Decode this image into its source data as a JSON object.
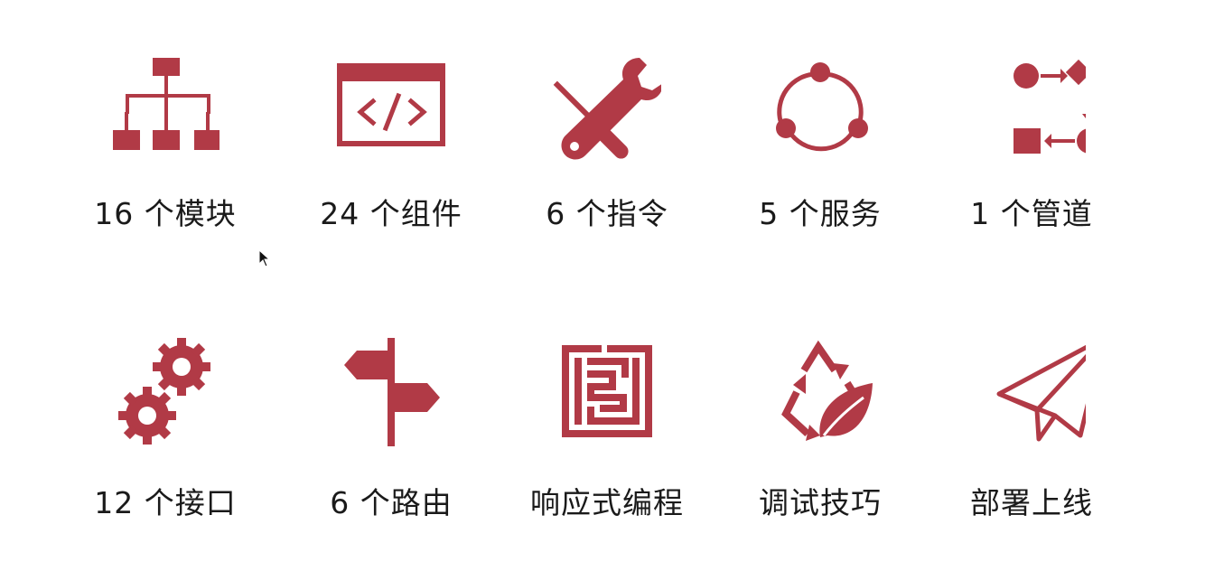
{
  "colors": {
    "accent": "#b13a46",
    "text": "#1a1a1a",
    "background": "#ffffff"
  },
  "tiles": [
    {
      "label": "16 个模块",
      "icon": "sitemap-icon"
    },
    {
      "label": "24 个组件",
      "icon": "code-window-icon"
    },
    {
      "label": "6 个指令",
      "icon": "tools-icon"
    },
    {
      "label": "5 个服务",
      "icon": "share-nodes-icon"
    },
    {
      "label": "1 个管道",
      "icon": "flow-process-icon"
    },
    {
      "label": "12 个接口",
      "icon": "gears-icon"
    },
    {
      "label": "6 个路由",
      "icon": "signpost-icon"
    },
    {
      "label": "响应式编程",
      "icon": "maze-icon"
    },
    {
      "label": "调试技巧",
      "icon": "recycle-leaf-icon"
    },
    {
      "label": "部署上线",
      "icon": "paper-plane-icon"
    }
  ]
}
